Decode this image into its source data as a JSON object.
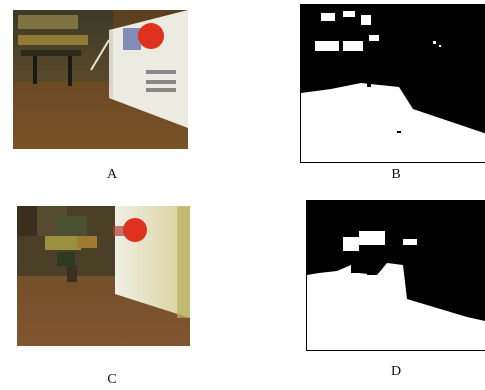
{
  "figure": {
    "panels": [
      {
        "id": "A",
        "label": "A",
        "kind": "color photograph"
      },
      {
        "id": "B",
        "label": "B",
        "kind": "binary segmentation"
      },
      {
        "id": "C",
        "label": "C",
        "kind": "low-resolution color image"
      },
      {
        "id": "D",
        "label": "D",
        "kind": "low-resolution binary segmentation"
      }
    ],
    "colors": {
      "floor": "#6e4a22",
      "wall_white": "#f2f0e6",
      "red_sign": "#e0301e",
      "mask_fg": "#000000",
      "mask_bg": "#ffffff"
    }
  }
}
